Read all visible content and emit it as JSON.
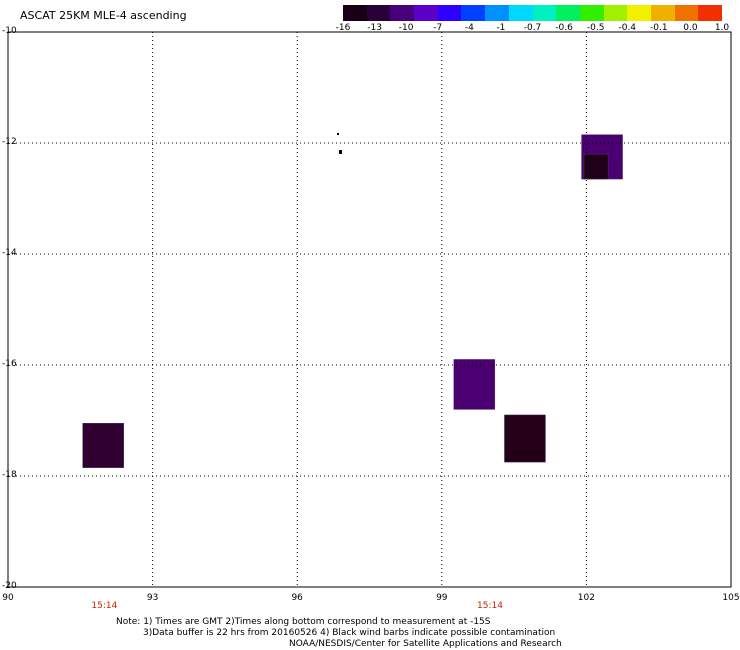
{
  "title": "ASCAT 25KM MLE-4 ascending",
  "colorbar": {
    "colors": [
      "#1a0014",
      "#2a0038",
      "#48007a",
      "#5a00c8",
      "#3000ff",
      "#0040ff",
      "#0090ff",
      "#00d8ff",
      "#00f0c0",
      "#00f060",
      "#30f000",
      "#a0f000",
      "#f0f000",
      "#f0b000",
      "#f07000",
      "#f03000"
    ],
    "labels": [
      "-16",
      "-13",
      "-10",
      "-7",
      "-4",
      "-1",
      "-0.7",
      "-0.6",
      "-0.5",
      "-0.4",
      "-0.1",
      "0.0",
      "1.0"
    ]
  },
  "map": {
    "lat_range": [
      -20,
      -10
    ],
    "lon_range": [
      90,
      105
    ],
    "lat_ticks": [
      "-10",
      "-12",
      "-14",
      "-16",
      "-18",
      "-20"
    ],
    "lon_ticks": [
      "90",
      "93",
      "96",
      "99",
      "102",
      "105"
    ],
    "time_labels": [
      {
        "lon": 92.0,
        "text": "15:14"
      },
      {
        "lon": 100.0,
        "text": "15:14"
      }
    ],
    "cells": [
      {
        "lon_min": 101.9,
        "lon_max": 102.75,
        "lat_min": -12.65,
        "lat_max": -11.85,
        "color": "#4a0070"
      },
      {
        "lon_min": 101.95,
        "lon_max": 102.45,
        "lat_min": -12.65,
        "lat_max": -12.2,
        "color": "#1e0018"
      },
      {
        "lon_min": 99.25,
        "lon_max": 100.1,
        "lat_min": -16.8,
        "lat_max": -15.9,
        "color": "#4a0070"
      },
      {
        "lon_min": 100.3,
        "lon_max": 101.15,
        "lat_min": -17.75,
        "lat_max": -16.9,
        "color": "#230018"
      },
      {
        "lon_min": 91.55,
        "lon_max": 92.4,
        "lat_min": -17.85,
        "lat_max": -17.05,
        "color": "#300030"
      }
    ]
  },
  "notes": [
    "Note: 1) Times are GMT 2)Times along bottom correspond to measurement at -15S",
    "3)Data buffer is 22 hrs from 20160526 4) Black wind barbs indicate possible contamination",
    "NOAA/NESDIS/Center for Satellite Applications and Research"
  ]
}
